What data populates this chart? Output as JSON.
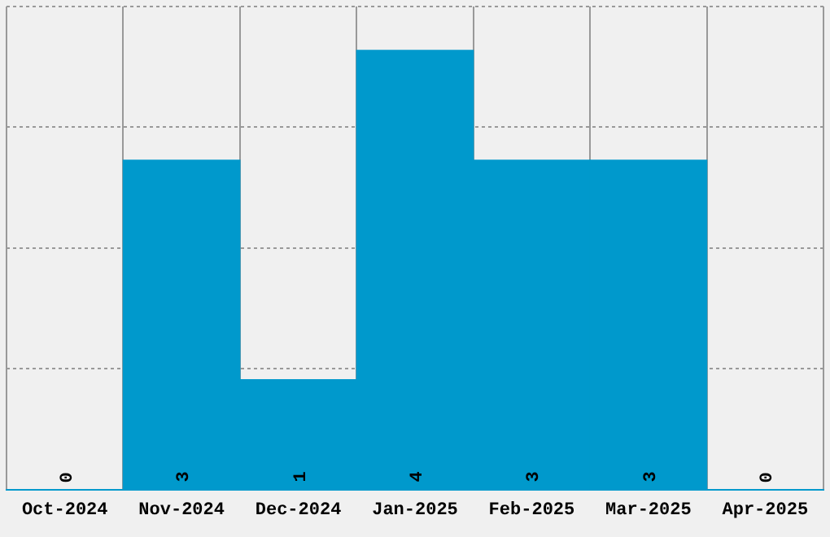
{
  "chart_data": {
    "type": "bar",
    "categories": [
      "Oct-2024",
      "Nov-2024",
      "Dec-2024",
      "Jan-2025",
      "Feb-2025",
      "Mar-2025",
      "Apr-2025"
    ],
    "values": [
      0,
      3,
      1,
      4,
      3,
      3,
      0
    ],
    "color": "#0099cc",
    "data_labels": true,
    "ylim": [
      0,
      4.4
    ],
    "yticks": [
      {
        "value": 0,
        "label": null
      },
      {
        "value": 1.1,
        "label": null
      },
      {
        "value": 2.2,
        "label": null
      },
      {
        "value": 3.3,
        "label": null
      },
      {
        "value": 4.4,
        "label": null
      }
    ],
    "tick_labels": "x",
    "grid": true
  }
}
